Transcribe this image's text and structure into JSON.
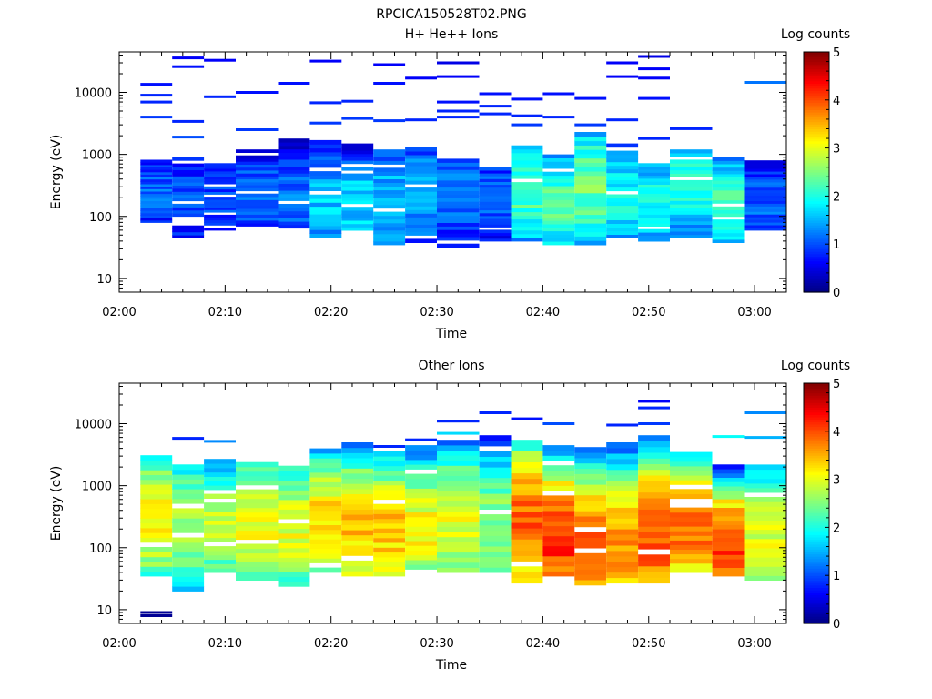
{
  "page_title": "RPCICA150528T02.PNG",
  "panels": [
    {
      "title": "H+ He++ Ions",
      "ylabel": "Energy (eV)",
      "xlabel": "Time",
      "colorbar_label": "Log counts",
      "colorbar_ticks": [
        "0",
        "1",
        "2",
        "3",
        "4",
        "5"
      ],
      "yticks": [
        "10",
        "100",
        "1000",
        "10000"
      ],
      "xticks": [
        "02:00",
        "02:10",
        "02:20",
        "02:30",
        "02:40",
        "02:50",
        "03:00"
      ]
    },
    {
      "title": "Other Ions",
      "ylabel": "Energy (eV)",
      "xlabel": "Time",
      "colorbar_label": "Log counts",
      "colorbar_ticks": [
        "0",
        "1",
        "2",
        "3",
        "4",
        "5"
      ],
      "yticks": [
        "10",
        "100",
        "1000",
        "10000"
      ],
      "xticks": [
        "02:00",
        "02:10",
        "02:20",
        "02:30",
        "02:40",
        "02:50",
        "03:00"
      ]
    }
  ],
  "chart_data": [
    {
      "type": "heatmap",
      "title": "H+ He++ Ions",
      "xlabel": "Time",
      "ylabel": "Energy (eV)",
      "yscale": "log",
      "colorbar_label": "Log counts",
      "colormap": "jet",
      "zlim": [
        0,
        5
      ],
      "xlim": [
        "02:00",
        "03:03"
      ],
      "ylim": [
        6,
        45000
      ],
      "x": [
        "02:03",
        "02:06",
        "02:09",
        "02:13",
        "02:16",
        "02:19",
        "02:23",
        "02:26",
        "02:29",
        "02:33",
        "02:36",
        "02:39",
        "02:42",
        "02:46",
        "02:49",
        "02:52",
        "02:56",
        "02:59",
        "03:02"
      ],
      "columns": [
        {
          "t0": "02:02",
          "t1": "02:05",
          "core": [
            80,
            820
          ],
          "level": 1.1,
          "peak": 250,
          "lines": [
            [
              4000,
              0.9
            ],
            [
              7000,
              0.8
            ],
            [
              9000,
              0.8
            ],
            [
              13500,
              0.7
            ]
          ]
        },
        {
          "t0": "02:05",
          "t1": "02:08",
          "core": [
            45,
            900
          ],
          "level": 1.0,
          "peak": 200,
          "lines": [
            [
              1900,
              1.0
            ],
            [
              3400,
              0.8
            ],
            [
              26000,
              0.7
            ],
            [
              36000,
              0.6
            ]
          ]
        },
        {
          "t0": "02:08",
          "t1": "02:11",
          "core": [
            60,
            720
          ],
          "level": 1.0,
          "peak": 180,
          "lines": [
            [
              8500,
              0.8
            ],
            [
              33000,
              0.6
            ]
          ]
        },
        {
          "t0": "02:11",
          "t1": "02:15",
          "core": [
            70,
            1200
          ],
          "level": 1.2,
          "peak": 200,
          "lines": [
            [
              2500,
              0.9
            ],
            [
              10000,
              0.7
            ]
          ]
        },
        {
          "t0": "02:15",
          "t1": "02:18",
          "core": [
            65,
            1800
          ],
          "level": 1.2,
          "peak": 180,
          "lines": [
            [
              14000,
              0.7
            ]
          ]
        },
        {
          "t0": "02:18",
          "t1": "02:21",
          "core": [
            40,
            1700
          ],
          "level": 1.6,
          "peak": 150,
          "lines": [
            [
              3200,
              0.9
            ],
            [
              6800,
              0.8
            ],
            [
              32000,
              0.6
            ]
          ]
        },
        {
          "t0": "02:21",
          "t1": "02:24",
          "core": [
            60,
            1500
          ],
          "level": 1.7,
          "peak": 160,
          "lines": [
            [
              3800,
              0.9
            ],
            [
              7200,
              0.8
            ]
          ]
        },
        {
          "t0": "02:24",
          "t1": "02:27",
          "core": [
            35,
            1200
          ],
          "level": 1.6,
          "peak": 170,
          "lines": [
            [
              3500,
              0.9
            ],
            [
              14000,
              0.7
            ],
            [
              28000,
              0.6
            ]
          ]
        },
        {
          "t0": "02:27",
          "t1": "02:30",
          "core": [
            38,
            1300
          ],
          "level": 1.5,
          "peak": 220,
          "lines": [
            [
              3600,
              0.8
            ],
            [
              17000,
              0.6
            ]
          ]
        },
        {
          "t0": "02:30",
          "t1": "02:34",
          "core": [
            28,
            850
          ],
          "level": 1.2,
          "peak": 250,
          "lines": [
            [
              4000,
              0.8
            ],
            [
              5000,
              0.8
            ],
            [
              7000,
              0.7
            ],
            [
              18000,
              0.6
            ],
            [
              30000,
              0.5
            ]
          ]
        },
        {
          "t0": "02:34",
          "t1": "02:37",
          "core": [
            40,
            620
          ],
          "level": 1.1,
          "peak": 200,
          "lines": [
            [
              4500,
              0.8
            ],
            [
              6000,
              0.8
            ],
            [
              9500,
              0.7
            ]
          ]
        },
        {
          "t0": "02:37",
          "t1": "02:40",
          "core": [
            40,
            1400
          ],
          "level": 2.3,
          "peak": 250,
          "lines": [
            [
              3000,
              0.9
            ],
            [
              4200,
              0.8
            ],
            [
              7800,
              0.7
            ]
          ]
        },
        {
          "t0": "02:40",
          "t1": "02:43",
          "core": [
            35,
            1000
          ],
          "level": 2.3,
          "peak": 160,
          "lines": [
            [
              4000,
              0.8
            ],
            [
              9500,
              0.7
            ]
          ]
        },
        {
          "t0": "02:43",
          "t1": "02:46",
          "core": [
            35,
            2300
          ],
          "level": 2.4,
          "peak": 300,
          "lines": [
            [
              3000,
              0.9
            ],
            [
              8000,
              0.7
            ]
          ]
        },
        {
          "t0": "02:46",
          "t1": "02:49",
          "core": [
            45,
            1500
          ],
          "level": 1.9,
          "peak": 200,
          "lines": [
            [
              3600,
              0.8
            ],
            [
              18000,
              0.6
            ],
            [
              30000,
              0.6
            ]
          ]
        },
        {
          "t0": "02:49",
          "t1": "02:52",
          "core": [
            40,
            720
          ],
          "level": 2.0,
          "peak": 180,
          "lines": [
            [
              1800,
              0.8
            ],
            [
              8000,
              0.7
            ],
            [
              17000,
              0.6
            ],
            [
              24000,
              0.6
            ],
            [
              38000,
              0.5
            ]
          ]
        },
        {
          "t0": "02:52",
          "t1": "02:56",
          "core": [
            45,
            1200
          ],
          "level": 2.1,
          "peak": 300,
          "lines": [
            [
              2600,
              0.8
            ]
          ]
        },
        {
          "t0": "02:56",
          "t1": "02:59",
          "core": [
            38,
            900
          ],
          "level": 2.3,
          "peak": 150,
          "lines": []
        },
        {
          "t0": "02:59",
          "t1": "03:03",
          "core": [
            60,
            800
          ],
          "level": 1.1,
          "peak": 180,
          "lines": [
            [
              14500,
              1.2
            ]
          ]
        }
      ]
    },
    {
      "type": "heatmap",
      "title": "Other Ions",
      "xlabel": "Time",
      "ylabel": "Energy (eV)",
      "yscale": "log",
      "colorbar_label": "Log counts",
      "colormap": "jet",
      "zlim": [
        0,
        5
      ],
      "xlim": [
        "02:00",
        "03:03"
      ],
      "ylim": [
        6,
        45000
      ],
      "x": [
        "02:03",
        "02:06",
        "02:09",
        "02:13",
        "02:16",
        "02:19",
        "02:23",
        "02:26",
        "02:29",
        "02:33",
        "02:36",
        "02:39",
        "02:42",
        "02:46",
        "02:49",
        "02:52",
        "02:56",
        "02:59",
        "03:02"
      ],
      "columns": [
        {
          "t0": "02:02",
          "t1": "02:05",
          "core": [
            35,
            3700
          ],
          "level": 3.1,
          "peak": 300,
          "lines": [
            [
              8,
              0.1
            ],
            [
              9,
              0.1
            ]
          ]
        },
        {
          "t0": "02:05",
          "t1": "02:08",
          "core": [
            20,
            2200
          ],
          "level": 2.7,
          "peak": 250,
          "lines": [
            [
              5800,
              0.8
            ]
          ]
        },
        {
          "t0": "02:08",
          "t1": "02:11",
          "core": [
            40,
            2700
          ],
          "level": 2.8,
          "peak": 220,
          "lines": [
            [
              5200,
              1.3
            ]
          ]
        },
        {
          "t0": "02:11",
          "t1": "02:15",
          "core": [
            30,
            2400
          ],
          "level": 3.1,
          "peak": 250,
          "lines": []
        },
        {
          "t0": "02:15",
          "t1": "02:18",
          "core": [
            20,
            2100
          ],
          "level": 3.0,
          "peak": 200,
          "lines": []
        },
        {
          "t0": "02:18",
          "t1": "02:21",
          "core": [
            40,
            4000
          ],
          "level": 3.3,
          "peak": 250,
          "lines": []
        },
        {
          "t0": "02:21",
          "t1": "02:24",
          "core": [
            35,
            5000
          ],
          "level": 3.4,
          "peak": 200,
          "lines": []
        },
        {
          "t0": "02:24",
          "t1": "02:27",
          "core": [
            35,
            3600
          ],
          "level": 3.4,
          "peak": 200,
          "lines": [
            [
              4300,
              0.8
            ]
          ]
        },
        {
          "t0": "02:27",
          "t1": "02:30",
          "core": [
            45,
            4500
          ],
          "level": 3.1,
          "peak": 200,
          "lines": [
            [
              5500,
              0.8
            ]
          ]
        },
        {
          "t0": "02:30",
          "t1": "02:34",
          "core": [
            40,
            5500
          ],
          "level": 3.0,
          "peak": 250,
          "lines": [
            [
              7000,
              1.7
            ],
            [
              11000,
              0.8
            ]
          ]
        },
        {
          "t0": "02:34",
          "t1": "02:37",
          "core": [
            40,
            6500
          ],
          "level": 2.6,
          "peak": 200,
          "lines": [
            [
              15000,
              0.8
            ]
          ]
        },
        {
          "t0": "02:37",
          "t1": "02:40",
          "core": [
            27,
            5500
          ],
          "level": 3.9,
          "peak": 250,
          "lines": [
            [
              12000,
              0.7
            ]
          ]
        },
        {
          "t0": "02:40",
          "t1": "02:43",
          "core": [
            35,
            4500
          ],
          "level": 4.2,
          "peak": 150,
          "lines": [
            [
              10000,
              1.0
            ]
          ]
        },
        {
          "t0": "02:43",
          "t1": "02:46",
          "core": [
            25,
            4200
          ],
          "level": 3.9,
          "peak": 120,
          "lines": []
        },
        {
          "t0": "02:46",
          "t1": "02:49",
          "core": [
            27,
            5000
          ],
          "level": 3.7,
          "peak": 120,
          "lines": [
            [
              9500,
              0.8
            ]
          ]
        },
        {
          "t0": "02:49",
          "t1": "02:52",
          "core": [
            27,
            6500
          ],
          "level": 4.0,
          "peak": 150,
          "lines": [
            [
              10000,
              0.9
            ],
            [
              18000,
              0.8
            ],
            [
              23000,
              0.6
            ]
          ]
        },
        {
          "t0": "02:52",
          "t1": "02:56",
          "core": [
            40,
            3500
          ],
          "level": 3.8,
          "peak": 200,
          "lines": []
        },
        {
          "t0": "02:56",
          "t1": "02:59",
          "core": [
            35,
            2200
          ],
          "level": 4.2,
          "peak": 100,
          "lines": [
            [
              6200,
              1.9
            ]
          ]
        },
        {
          "t0": "02:59",
          "t1": "03:03",
          "core": [
            30,
            2600
          ],
          "level": 3.0,
          "peak": 150,
          "lines": [
            [
              6000,
              1.5
            ],
            [
              15000,
              1.3
            ]
          ]
        }
      ]
    }
  ]
}
